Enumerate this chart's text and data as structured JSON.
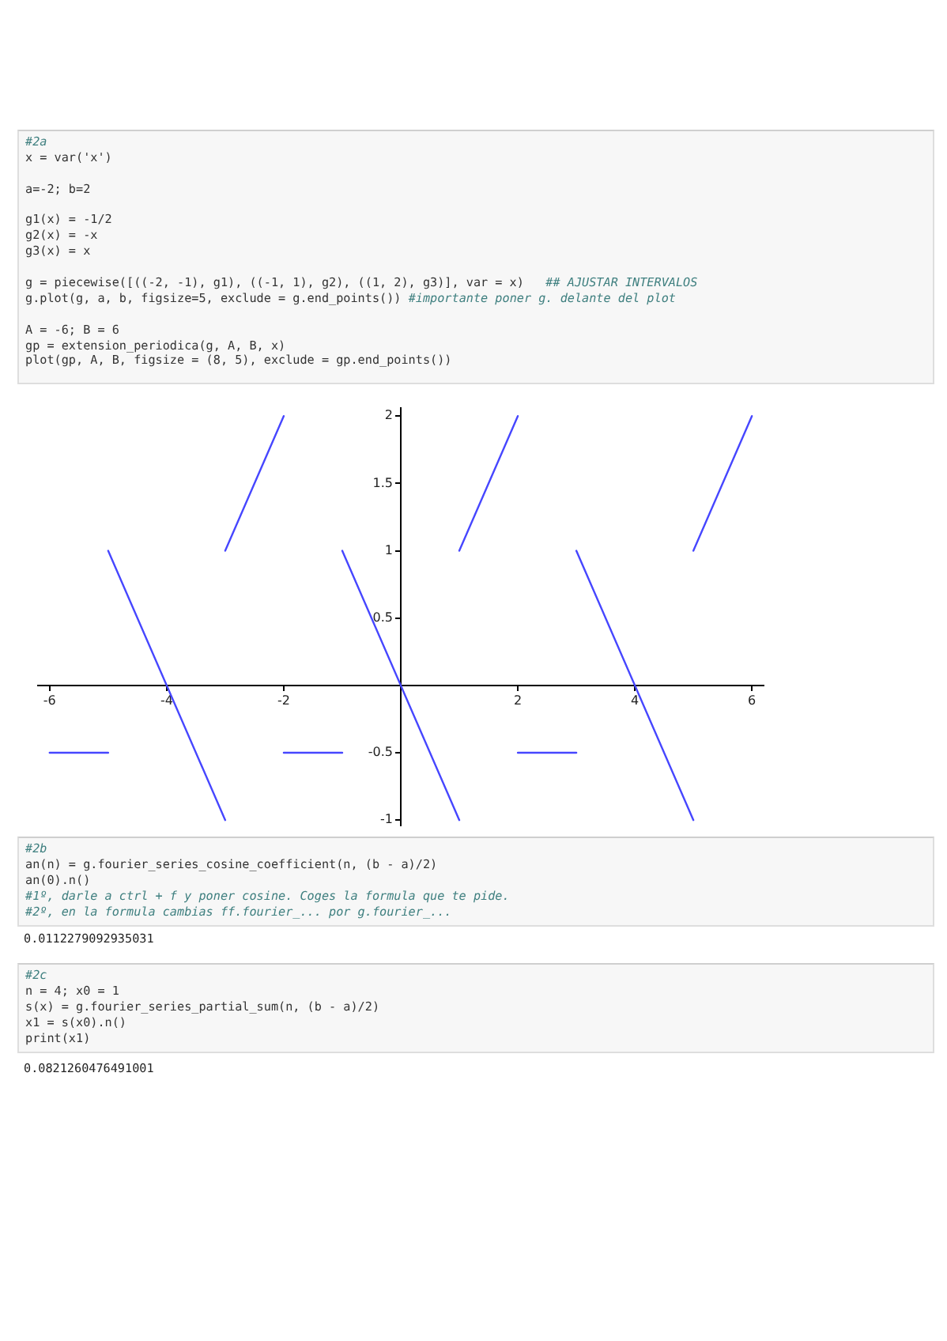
{
  "chart_data": {
    "type": "line",
    "annotations": [
      "#2a\nx = var('x')\n\na=-2; b=2\n\ng1(x) = -1/2\ng2(x) = -x\ng3(x) = x\n\ng = piecewise([((-2, -1), g1), ((-1, 1), g2), ((1, 2), g3)], var = x)   ## AJUSTAR INTERVALOS\ng.plot(g, a, b, figsize=5, exclude = g.end_points()) #importante poner g. delante del plot\n\nA = -6; B = 6\ngp = extension_periodica(g, A, B, x)\nplot(gp, A, B, figsize = (8, 5), exclude = gp.end_points())",
      "#2b\nan(n) = g.fourier_series_cosine_coefficient(n, (b - a)/2)\nan(0).n()\n#1º, darle a ctrl + f y poner cosine. Coges la formula que te pide.\n#2º, en la formula cambias ff.fourier_... por g.fourier_...",
      "0.0112279092935031",
      "#2c\nn = 4; x0 = 1\ns(x) = g.fourier_series_partial_sum(n, (b - a)/2)\nx1 = s(x0).n()\nprint(x1)",
      "0.0821260476491001"
    ],
    "series": [
      {
        "color": "#4646ff",
        "x": [
          -6,
          -5
        ],
        "values": [
          -0.5,
          -0.5
        ]
      },
      {
        "color": "#4646ff",
        "x": [
          -5,
          -3
        ],
        "values": [
          1,
          -1
        ]
      },
      {
        "color": "#4646ff",
        "x": [
          -3,
          -2
        ],
        "values": [
          1,
          2
        ]
      },
      {
        "color": "#4646ff",
        "x": [
          -2,
          -1
        ],
        "values": [
          -0.5,
          -0.5
        ]
      },
      {
        "color": "#4646ff",
        "x": [
          -1,
          1
        ],
        "values": [
          1,
          -1
        ]
      },
      {
        "color": "#4646ff",
        "x": [
          1,
          2
        ],
        "values": [
          1,
          2
        ]
      },
      {
        "color": "#4646ff",
        "x": [
          2,
          3
        ],
        "values": [
          -0.5,
          -0.5
        ]
      },
      {
        "color": "#4646ff",
        "x": [
          3,
          5
        ],
        "values": [
          1,
          -1
        ]
      },
      {
        "color": "#4646ff",
        "x": [
          5,
          6
        ],
        "values": [
          1,
          2
        ]
      }
    ],
    "xlim": [
      -6.2,
      6.2
    ],
    "ylim": [
      -1.04,
      2.06
    ],
    "xticks": [
      -6,
      -4,
      -2,
      2,
      4,
      6
    ],
    "yticks": [
      -1,
      -0.5,
      0.5,
      1,
      1.5,
      2
    ],
    "marker": "none"
  }
}
